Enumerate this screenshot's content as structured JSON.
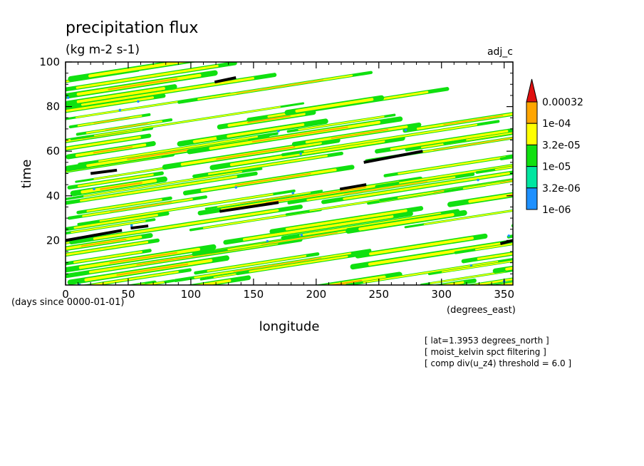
{
  "chart_data": {
    "type": "heatmap",
    "title": "precipitation flux",
    "units": "(kg m-2 s-1)",
    "run_label": "adj_c",
    "xlabel": "longitude",
    "x_units": "(degrees_east)",
    "ylabel": "time",
    "y_units": "(days since 0000-01-01)",
    "xlim": [
      0,
      357
    ],
    "ylim": [
      0,
      100
    ],
    "x_ticks": [
      0,
      50,
      100,
      150,
      200,
      250,
      300,
      350
    ],
    "y_ticks": [
      20,
      40,
      60,
      80,
      100
    ],
    "colorbar": {
      "levels": [
        "1e-06",
        "3.2e-06",
        "1e-05",
        "3.2e-05",
        "1e-04",
        "0.00032"
      ],
      "colors": [
        "#1e90ff",
        "#00e6a0",
        "#10e010",
        "#ffff00",
        "#ffa500",
        "#e01010"
      ],
      "extend": "max"
    },
    "annotations": [
      "[ lat=1.3953 degrees_north ]",
      "[ moist_kelvin spct filtering ]",
      "[ comp div(u_z4) threshold = 6.0 ]"
    ],
    "propagation_segments": [
      {
        "x": [
          0,
          45
        ],
        "y": [
          20,
          24.5
        ]
      },
      {
        "x": [
          52,
          66
        ],
        "y": [
          25.5,
          26.5
        ]
      },
      {
        "x": [
          20,
          41
        ],
        "y": [
          50,
          51.5
        ]
      },
      {
        "x": [
          119,
          136
        ],
        "y": [
          91,
          93
        ]
      },
      {
        "x": [
          123,
          170
        ],
        "y": [
          33,
          37
        ]
      },
      {
        "x": [
          219,
          240
        ],
        "y": [
          43,
          45
        ]
      },
      {
        "x": [
          238,
          285
        ],
        "y": [
          55,
          60
        ]
      },
      {
        "x": [
          347,
          357
        ],
        "y": [
          18.5,
          20
        ]
      }
    ]
  }
}
